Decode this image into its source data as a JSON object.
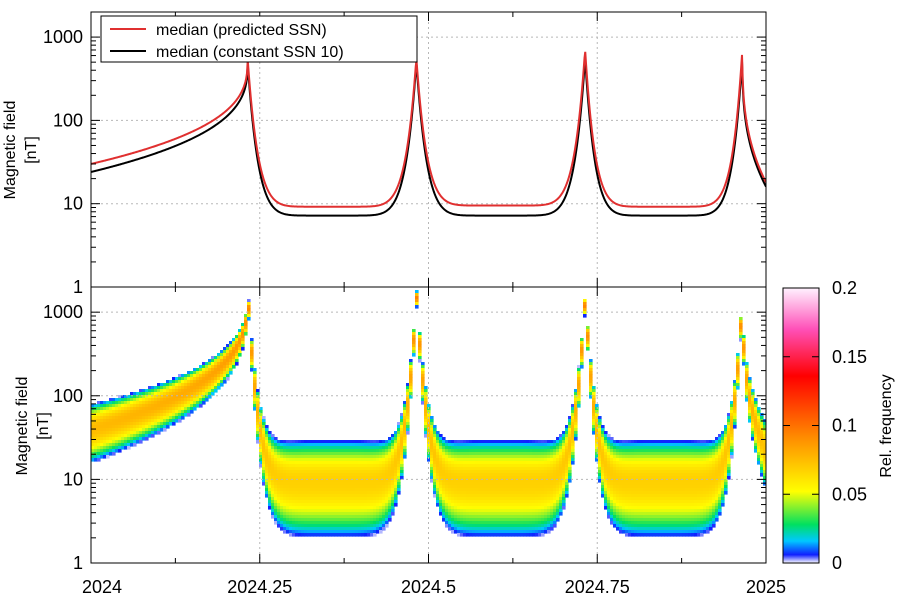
{
  "chart_data": [
    {
      "type": "line",
      "title": "",
      "xlabel": "",
      "ylabel": "Magnetic field",
      "ylabel_unit": "[nT]",
      "yscale": "log",
      "ylim": [
        1,
        2000
      ],
      "xlim": [
        2024,
        2025
      ],
      "grid": true,
      "legend_position": "top-left",
      "y_ticks": [
        "1",
        "10",
        "100",
        "1000"
      ],
      "series": [
        {
          "name": "median (predicted SSN)",
          "color": "#e03030",
          "peak_x": [
            2024.232,
            2024.482,
            2024.732,
            2024.965
          ],
          "peak_y": [
            560,
            560,
            710,
            720
          ],
          "min_y": [
            9.2,
            9.5,
            9.2,
            9.2
          ],
          "edge_y": [
            30,
            18
          ]
        },
        {
          "name": "median (constant SSN 10)",
          "color": "#000000",
          "peak_x": [
            2024.232,
            2024.482,
            2024.732,
            2024.965
          ],
          "peak_y": [
            500,
            500,
            560,
            600
          ],
          "min_y": [
            7.2,
            7.2,
            7.2,
            7.5
          ],
          "edge_y": [
            24,
            16
          ]
        }
      ]
    },
    {
      "type": "heatmap",
      "title": "",
      "xlabel": "",
      "ylabel": "Magnetic field",
      "ylabel_unit": "[nT]",
      "yscale": "log",
      "ylim": [
        1,
        2000
      ],
      "xlim": [
        2024,
        2025
      ],
      "grid": true,
      "x_ticks": [
        "2024",
        "2024.25",
        "2024.5",
        "2024.75",
        "2025"
      ],
      "y_ticks": [
        "1",
        "10",
        "100",
        "1000"
      ],
      "peak_x": [
        2024.232,
        2024.482,
        2024.732,
        2024.965
      ],
      "peak_y": [
        1700,
        1600,
        1600,
        1700
      ],
      "band_center_min_y": 9.5,
      "band_low_min_y": 2.0,
      "band_high_min_y": 30,
      "colorbar": {
        "label": "Rel. frequency",
        "range": [
          0,
          0.2
        ],
        "ticks": [
          "0",
          "0.05",
          "0.1",
          "0.15",
          "0.2"
        ],
        "colors": [
          "#ffffff",
          "#1020ff",
          "#00c8ff",
          "#00e060",
          "#ffff00",
          "#ff9000",
          "#ff0000",
          "#ff40b0",
          "#fff0ff"
        ]
      }
    }
  ]
}
